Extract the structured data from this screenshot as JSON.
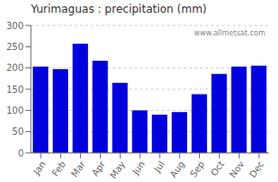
{
  "chart_data": {
    "type": "bar",
    "title": "Yurimaguas : precipitation (mm)",
    "categories": [
      "Jan",
      "Feb",
      "Mar",
      "Apr",
      "May",
      "Jun",
      "Jul",
      "Aug",
      "Sep",
      "Oct",
      "Nov",
      "Dec"
    ],
    "values": [
      203,
      197,
      257,
      217,
      165,
      100,
      90,
      96,
      138,
      186,
      203,
      205
    ],
    "color": "#0000DD",
    "ylim": [
      0,
      300
    ],
    "yticks": [
      0,
      50,
      100,
      150,
      200,
      250,
      300
    ],
    "grid": true,
    "annotations": [
      "www.allmetsat.com"
    ]
  }
}
